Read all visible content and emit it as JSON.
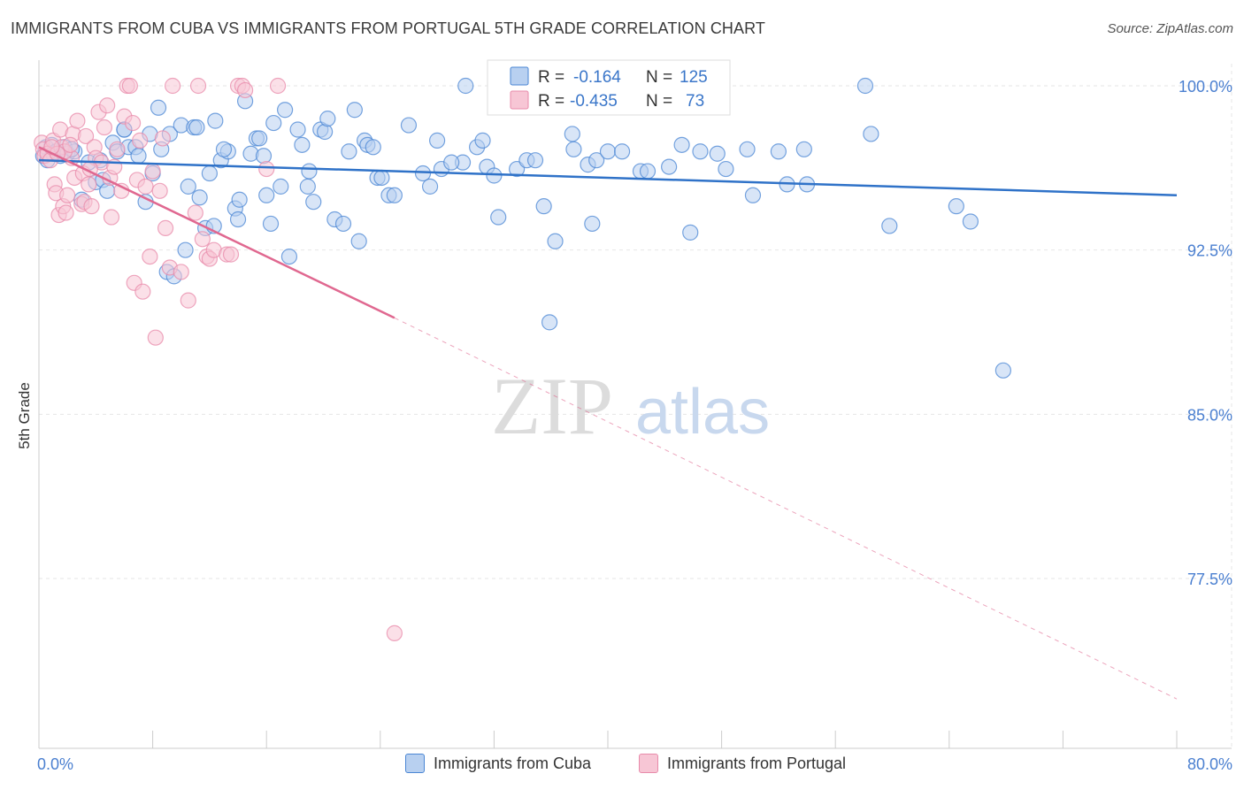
{
  "title": "IMMIGRANTS FROM CUBA VS IMMIGRANTS FROM PORTUGAL 5TH GRADE CORRELATION CHART",
  "source": "Source: ZipAtlas.com",
  "watermark": {
    "zip": "ZIP",
    "atlas": "atlas"
  },
  "colors": {
    "cuba": "#4a86d4",
    "cuba_fill": "#b8d0f0",
    "cuba_line": "#2f72c8",
    "portugal": "#e88aaa",
    "portugal_fill": "#f7c6d5",
    "portugal_line": "#e06890",
    "axis_label": "#4a7fd0"
  },
  "legend": {
    "cuba": {
      "r_label": "R =",
      "r_value": "-0.164",
      "n_label": "N =",
      "n_value": "125"
    },
    "portugal": {
      "r_label": "R =",
      "r_value": "-0.435",
      "n_label": "N =",
      "n_value": "73"
    }
  },
  "bottom_legend": {
    "cuba": "Immigrants from Cuba",
    "portugal": "Immigrants from Portugal"
  },
  "chart_data": {
    "type": "scatter",
    "title": "IMMIGRANTS FROM CUBA VS IMMIGRANTS FROM PORTUGAL 5TH GRADE CORRELATION CHART",
    "xlabel": "",
    "ylabel": "5th Grade",
    "xlim": [
      0,
      80
    ],
    "ylim": [
      70,
      101.5
    ],
    "x_tick_labels": [
      "0.0%",
      "80.0%"
    ],
    "y_ticks": [
      77.5,
      85.0,
      92.5,
      100.0
    ],
    "y_tick_labels": [
      "77.5%",
      "85.0%",
      "92.5%",
      "100.0%"
    ],
    "grid": true,
    "legend_position": "top-center",
    "series": [
      {
        "name": "Immigrants from Cuba",
        "color": "#4a86d4",
        "trend": {
          "x": [
            0,
            80
          ],
          "y": [
            96.6,
            95.0
          ],
          "dashed_after": null
        },
        "points": [
          [
            0.3,
            96.8
          ],
          [
            0.5,
            97.2
          ],
          [
            0.6,
            96.6
          ],
          [
            0.9,
            97.3
          ],
          [
            1.0,
            96.9
          ],
          [
            1.2,
            97.0
          ],
          [
            1.5,
            96.8
          ],
          [
            1.8,
            97.2
          ],
          [
            2.0,
            96.9
          ],
          [
            2.5,
            97.0
          ],
          [
            3.0,
            94.8
          ],
          [
            3.5,
            96.5
          ],
          [
            4.0,
            95.6
          ],
          [
            4.3,
            96.6
          ],
          [
            4.5,
            95.7
          ],
          [
            4.8,
            95.2
          ],
          [
            5.2,
            97.4
          ],
          [
            5.5,
            97.0
          ],
          [
            6.0,
            98.0
          ],
          [
            6.3,
            97.2
          ],
          [
            6.8,
            97.2
          ],
          [
            7.0,
            96.8
          ],
          [
            7.5,
            94.7
          ],
          [
            7.8,
            97.8
          ],
          [
            8.0,
            96.0
          ],
          [
            8.4,
            99.0
          ],
          [
            8.6,
            97.1
          ],
          [
            9.0,
            91.5
          ],
          [
            9.2,
            97.8
          ],
          [
            9.5,
            91.3
          ],
          [
            10.0,
            98.2
          ],
          [
            10.3,
            92.5
          ],
          [
            10.5,
            95.4
          ],
          [
            10.9,
            98.1
          ],
          [
            11.3,
            94.9
          ],
          [
            11.7,
            93.5
          ],
          [
            12.0,
            96.0
          ],
          [
            12.3,
            93.6
          ],
          [
            12.4,
            98.4
          ],
          [
            12.8,
            96.6
          ],
          [
            13.3,
            97.0
          ],
          [
            13.8,
            94.4
          ],
          [
            14.0,
            93.9
          ],
          [
            14.1,
            94.8
          ],
          [
            14.5,
            99.3
          ],
          [
            14.9,
            96.9
          ],
          [
            15.3,
            97.6
          ],
          [
            15.5,
            97.6
          ],
          [
            15.8,
            96.8
          ],
          [
            16.0,
            95.0
          ],
          [
            16.3,
            93.7
          ],
          [
            16.5,
            98.3
          ],
          [
            17.0,
            95.4
          ],
          [
            17.3,
            98.9
          ],
          [
            17.6,
            92.2
          ],
          [
            18.2,
            98.0
          ],
          [
            18.5,
            97.3
          ],
          [
            18.9,
            95.4
          ],
          [
            19.0,
            96.1
          ],
          [
            19.3,
            94.7
          ],
          [
            19.8,
            98.0
          ],
          [
            20.1,
            97.9
          ],
          [
            20.3,
            98.5
          ],
          [
            20.8,
            93.9
          ],
          [
            21.4,
            93.7
          ],
          [
            21.8,
            97.0
          ],
          [
            22.2,
            98.9
          ],
          [
            22.5,
            92.9
          ],
          [
            22.9,
            97.5
          ],
          [
            23.1,
            97.3
          ],
          [
            23.5,
            97.2
          ],
          [
            23.8,
            95.8
          ],
          [
            24.1,
            95.8
          ],
          [
            24.6,
            95.0
          ],
          [
            26.0,
            98.2
          ],
          [
            27.0,
            96.0
          ],
          [
            27.5,
            95.4
          ],
          [
            28.0,
            97.5
          ],
          [
            28.3,
            96.2
          ],
          [
            29.8,
            96.5
          ],
          [
            30.0,
            100.0
          ],
          [
            30.8,
            97.2
          ],
          [
            31.2,
            97.5
          ],
          [
            31.5,
            96.3
          ],
          [
            32.0,
            95.9
          ],
          [
            32.3,
            94.0
          ],
          [
            33.6,
            96.2
          ],
          [
            34.3,
            96.6
          ],
          [
            34.9,
            96.6
          ],
          [
            35.5,
            94.5
          ],
          [
            35.9,
            89.2
          ],
          [
            36.3,
            92.9
          ],
          [
            37.6,
            97.1
          ],
          [
            38.6,
            96.4
          ],
          [
            38.9,
            93.7
          ],
          [
            39.2,
            96.6
          ],
          [
            40.0,
            97.0
          ],
          [
            41.0,
            97.0
          ],
          [
            42.3,
            96.1
          ],
          [
            42.8,
            96.1
          ],
          [
            44.3,
            96.3
          ],
          [
            45.2,
            97.3
          ],
          [
            45.8,
            93.3
          ],
          [
            46.5,
            97.0
          ],
          [
            47.7,
            96.9
          ],
          [
            48.3,
            96.2
          ],
          [
            49.8,
            97.1
          ],
          [
            50.2,
            95.0
          ],
          [
            52.0,
            97.0
          ],
          [
            52.6,
            95.5
          ],
          [
            53.8,
            97.1
          ],
          [
            54.0,
            95.5
          ],
          [
            58.1,
            100.0
          ],
          [
            58.5,
            97.8
          ],
          [
            59.8,
            93.6
          ],
          [
            64.5,
            94.5
          ],
          [
            65.5,
            93.8
          ],
          [
            67.8,
            87.0
          ],
          [
            13.0,
            97.1
          ],
          [
            6.0,
            98.0
          ],
          [
            2.3,
            97.1
          ],
          [
            11.1,
            98.1
          ],
          [
            25.0,
            95.0
          ],
          [
            37.5,
            97.8
          ],
          [
            29.0,
            96.5
          ]
        ]
      },
      {
        "name": "Immigrants from Portugal",
        "color": "#e88aaa",
        "trend": {
          "x": [
            0,
            25
          ],
          "y": [
            97.2,
            89.4
          ],
          "dashed_to": [
            80,
            72.0
          ]
        },
        "points": [
          [
            0.2,
            97.4
          ],
          [
            0.3,
            97.1
          ],
          [
            0.4,
            96.8
          ],
          [
            0.6,
            96.9
          ],
          [
            0.8,
            96.6
          ],
          [
            1.0,
            97.5
          ],
          [
            1.1,
            95.5
          ],
          [
            1.2,
            95.1
          ],
          [
            1.4,
            94.1
          ],
          [
            1.5,
            98.0
          ],
          [
            1.6,
            97.2
          ],
          [
            1.7,
            94.5
          ],
          [
            1.9,
            94.2
          ],
          [
            2.0,
            95.0
          ],
          [
            2.3,
            96.7
          ],
          [
            2.4,
            97.8
          ],
          [
            2.5,
            95.8
          ],
          [
            2.7,
            98.4
          ],
          [
            3.0,
            94.6
          ],
          [
            3.1,
            96.0
          ],
          [
            3.2,
            94.7
          ],
          [
            3.3,
            97.7
          ],
          [
            3.5,
            95.5
          ],
          [
            3.7,
            94.5
          ],
          [
            3.9,
            97.2
          ],
          [
            4.0,
            96.7
          ],
          [
            4.2,
            98.8
          ],
          [
            4.4,
            96.5
          ],
          [
            4.6,
            98.1
          ],
          [
            4.8,
            99.1
          ],
          [
            5.0,
            95.8
          ],
          [
            5.1,
            94.0
          ],
          [
            5.3,
            96.3
          ],
          [
            5.5,
            97.1
          ],
          [
            5.8,
            95.2
          ],
          [
            6.0,
            98.6
          ],
          [
            6.2,
            100.0
          ],
          [
            6.4,
            100.0
          ],
          [
            6.7,
            91.0
          ],
          [
            6.9,
            95.7
          ],
          [
            7.1,
            97.5
          ],
          [
            7.3,
            90.6
          ],
          [
            7.5,
            95.4
          ],
          [
            7.8,
            92.2
          ],
          [
            8.0,
            96.1
          ],
          [
            8.2,
            88.5
          ],
          [
            8.5,
            95.2
          ],
          [
            8.7,
            97.6
          ],
          [
            8.9,
            93.5
          ],
          [
            9.2,
            91.7
          ],
          [
            9.4,
            100.0
          ],
          [
            10.0,
            91.5
          ],
          [
            10.5,
            90.2
          ],
          [
            11.0,
            94.2
          ],
          [
            11.2,
            100.0
          ],
          [
            11.5,
            93.0
          ],
          [
            11.8,
            92.2
          ],
          [
            12.0,
            92.1
          ],
          [
            12.3,
            92.5
          ],
          [
            13.2,
            92.3
          ],
          [
            13.5,
            92.3
          ],
          [
            14.0,
            100.0
          ],
          [
            14.3,
            100.0
          ],
          [
            14.5,
            99.8
          ],
          [
            16.0,
            96.2
          ],
          [
            16.8,
            100.0
          ],
          [
            25.0,
            75.0
          ],
          [
            1.8,
            97.0
          ],
          [
            2.2,
            97.3
          ],
          [
            6.6,
            98.3
          ],
          [
            1.3,
            96.9
          ],
          [
            0.9,
            97.2
          ],
          [
            3.6,
            96.2
          ]
        ]
      }
    ]
  }
}
